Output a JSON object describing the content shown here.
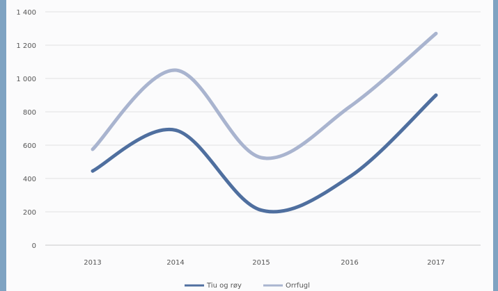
{
  "chart_data": {
    "type": "line",
    "smooth": true,
    "categories": [
      "2013",
      "2014",
      "2015",
      "2016",
      "2017"
    ],
    "series": [
      {
        "name": "Tiu og røy",
        "values": [
          445,
          690,
          210,
          410,
          900
        ],
        "color": "#4f6f9f"
      },
      {
        "name": "Orrfugl",
        "values": [
          575,
          1050,
          525,
          830,
          1270
        ],
        "color": "#a9b4cf"
      }
    ],
    "title": "",
    "xlabel": "",
    "ylabel": "",
    "ylim": [
      0,
      1400
    ],
    "yticks": [
      "0",
      "200",
      "400",
      "600",
      "800",
      "1 000",
      "1 200",
      "1 400"
    ],
    "grid": true,
    "legend": "bottom"
  }
}
